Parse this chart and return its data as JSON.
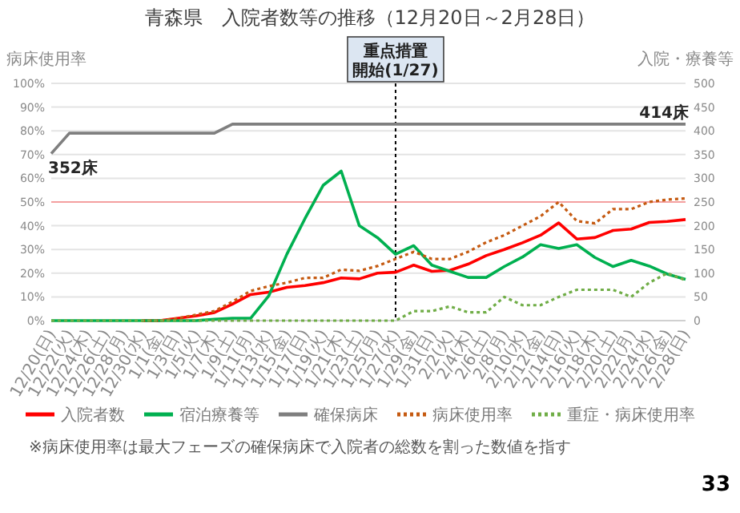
{
  "chart_data": {
    "type": "line",
    "title": "青森県　入院者数等の推移（12月20日～2月28日）",
    "ylabel": "病床使用率",
    "y2label": "入院・療養等",
    "categories": [
      "12/20(日)",
      "12/22(火)",
      "12/24(木)",
      "12/26(土)",
      "12/28(月)",
      "12/30(水)",
      "1/1(金)",
      "1/3(日)",
      "1/5(火)",
      "1/7(木)",
      "1/9(土)",
      "1/11(月)",
      "1/13(水)",
      "1/15(金)",
      "1/17(日)",
      "1/19(火)",
      "1/21(木)",
      "1/23(土)",
      "1/25(月)",
      "1/27(水)",
      "1/29(金)",
      "1/31(日)",
      "2/2(火)",
      "2/4(木)",
      "2/6(土)",
      "2/8(月)",
      "2/10(水)",
      "2/12(金)",
      "2/14(日)",
      "2/16(火)",
      "2/18(木)",
      "2/20(土)",
      "2/22(月)",
      "2/24(水)",
      "2/26(金)",
      "2/28(日)"
    ],
    "series": [
      {
        "name": "入院者数",
        "color": "#ff0000",
        "axis": "y2",
        "line_style": "solid",
        "values": [
          null,
          null,
          null,
          null,
          null,
          0,
          0,
          5,
          10,
          17,
          35,
          55,
          60,
          70,
          74,
          80,
          90,
          88,
          100,
          102,
          117,
          104,
          106,
          119,
          137,
          150,
          164,
          180,
          206,
          172,
          175,
          190,
          193,
          207,
          209,
          213
        ]
      },
      {
        "name": "宿泊療養等",
        "color": "#00b050",
        "axis": "y2",
        "line_style": "solid",
        "values": [
          0,
          0,
          0,
          0,
          0,
          0,
          0,
          0,
          0,
          3,
          5,
          5,
          52,
          140,
          215,
          285,
          315,
          200,
          175,
          140,
          158,
          117,
          104,
          91,
          91,
          114,
          134,
          160,
          152,
          160,
          133,
          114,
          127,
          115,
          98,
          87
        ]
      },
      {
        "name": "確保病床",
        "color": "#7f7f7f",
        "axis": "y2",
        "line_style": "solid",
        "values": [
          352,
          395,
          395,
          395,
          395,
          395,
          395,
          395,
          395,
          395,
          414,
          414,
          414,
          414,
          414,
          414,
          414,
          414,
          414,
          414,
          414,
          414,
          414,
          414,
          414,
          414,
          414,
          414,
          414,
          414,
          414,
          414,
          414,
          414,
          414,
          414
        ],
        "value_labels": [
          "352床",
          null,
          null,
          null,
          null,
          null,
          null,
          null,
          null,
          null,
          null,
          null,
          null,
          null,
          null,
          null,
          null,
          null,
          null,
          null,
          null,
          null,
          null,
          null,
          null,
          null,
          null,
          null,
          null,
          null,
          null,
          null,
          null,
          null,
          null,
          "414床"
        ]
      },
      {
        "name": "病床使用率",
        "color": "#c55a11",
        "axis": "y",
        "line_style": "dotted",
        "values": [
          null,
          null,
          null,
          null,
          null,
          0,
          0,
          1,
          2.5,
          4,
          8,
          12.5,
          14.5,
          16,
          18,
          18,
          21.5,
          21,
          23,
          26,
          29,
          26,
          26,
          29,
          33,
          36,
          40,
          44,
          50,
          42,
          41,
          47,
          47,
          50,
          51,
          51.5
        ]
      },
      {
        "name": "重症・病床使用率",
        "color": "#70ad47",
        "axis": "y",
        "line_style": "dotted",
        "values": [
          0,
          0,
          0,
          0,
          0,
          0,
          0,
          0,
          0,
          0,
          0,
          0,
          0,
          0,
          0,
          0,
          0,
          0,
          0,
          0,
          4,
          4,
          6,
          3.5,
          3.5,
          10,
          6.5,
          6.5,
          10,
          13,
          13,
          13,
          10,
          16,
          20,
          17
        ]
      }
    ],
    "ylim": [
      0,
      100
    ],
    "yticks": [
      {
        "value": 0,
        "label": "0%"
      },
      {
        "value": 10,
        "label": "10%"
      },
      {
        "value": 20,
        "label": "20%"
      },
      {
        "value": 30,
        "label": "30%"
      },
      {
        "value": 40,
        "label": "40%"
      },
      {
        "value": 50,
        "label": "50%"
      },
      {
        "value": 60,
        "label": "60%"
      },
      {
        "value": 70,
        "label": "70%"
      },
      {
        "value": 80,
        "label": "80%"
      },
      {
        "value": 90,
        "label": "90%"
      },
      {
        "value": 100,
        "label": "100%"
      }
    ],
    "y2lim": [
      0,
      500
    ],
    "y2ticks": [
      0,
      50,
      100,
      150,
      200,
      250,
      300,
      350,
      400,
      450,
      500
    ],
    "ref_lines": [
      {
        "axis": "x",
        "value": "1/27(水)",
        "label": "重点措置開始(1/27)",
        "color": "#000000",
        "line_style": "dotted"
      },
      {
        "axis": "y",
        "value": 50,
        "color": "#f4a0a0",
        "line_style": "solid"
      }
    ],
    "grid": "y",
    "legend": "bottom",
    "marker": "none",
    "annotations": [
      "※病床使用率は最大フェーズの確保病床で入院者の総数を割った数値を指す",
      "33"
    ]
  }
}
